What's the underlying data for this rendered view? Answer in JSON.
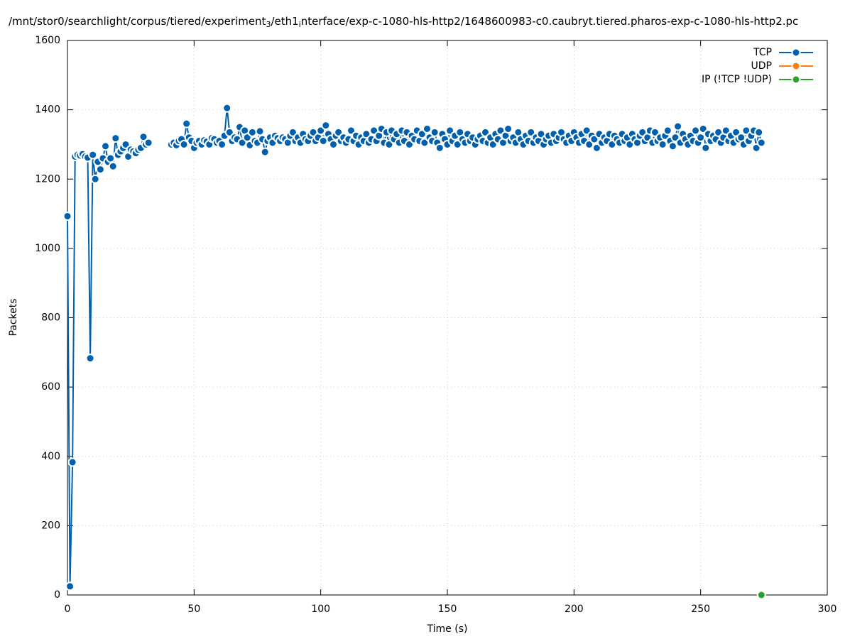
{
  "chart_data": {
    "type": "line",
    "title": [
      "/mnt/stor0/searchlight/corpus/tiered/experiment",
      "3",
      "/eth1",
      "i",
      "nterface/exp-c-1080-hls-http2/1648600983-c0.caubryt.tiered.pharos-exp-c-1080-hls-http2.pc"
    ],
    "xlabel": "Time (s)",
    "ylabel": "Packets",
    "xlim": [
      0,
      300
    ],
    "xticks": [
      0,
      50,
      100,
      150,
      200,
      250,
      300
    ],
    "ylim": [
      0,
      1600
    ],
    "yticks": [
      0,
      200,
      400,
      600,
      800,
      1000,
      1200,
      1400,
      1600
    ],
    "grid": true,
    "legend": "top right",
    "series": [
      {
        "name": "TCP",
        "color": "#0060ad",
        "x": [
          0,
          1,
          2,
          3,
          4,
          5,
          6,
          7,
          8,
          9,
          10,
          11,
          12,
          13,
          14,
          15,
          16,
          17,
          18,
          19,
          20,
          21,
          22,
          23,
          24,
          25,
          26,
          27,
          28,
          29,
          30,
          31,
          32,
          33,
          34,
          35,
          36,
          37,
          38,
          39,
          40,
          41,
          42,
          43,
          44,
          45,
          46,
          47,
          48,
          49,
          50,
          51,
          52,
          53,
          54,
          55,
          56,
          57,
          58,
          59,
          60,
          61,
          62,
          63,
          64,
          65,
          66,
          67,
          68,
          69,
          70,
          71,
          72,
          73,
          74,
          75,
          76,
          77,
          78,
          79,
          80,
          81,
          82,
          83,
          84,
          85,
          86,
          87,
          88,
          89,
          90,
          91,
          92,
          93,
          94,
          95,
          96,
          97,
          98,
          99,
          100,
          101,
          102,
          103,
          104,
          105,
          106,
          107,
          108,
          109,
          110,
          111,
          112,
          113,
          114,
          115,
          116,
          117,
          118,
          119,
          120,
          121,
          122,
          123,
          124,
          125,
          126,
          127,
          128,
          129,
          130,
          131,
          132,
          133,
          134,
          135,
          136,
          137,
          138,
          139,
          140,
          141,
          142,
          143,
          144,
          145,
          146,
          147,
          148,
          149,
          150,
          151,
          152,
          153,
          154,
          155,
          156,
          157,
          158,
          159,
          160,
          161,
          162,
          163,
          164,
          165,
          166,
          167,
          168,
          169,
          170,
          171,
          172,
          173,
          174,
          175,
          176,
          177,
          178,
          179,
          180,
          181,
          182,
          183,
          184,
          185,
          186,
          187,
          188,
          189,
          190,
          191,
          192,
          193,
          194,
          195,
          196,
          197,
          198,
          199,
          200,
          201,
          202,
          203,
          204,
          205,
          206,
          207,
          208,
          209,
          210,
          211,
          212,
          213,
          214,
          215,
          216,
          217,
          218,
          219,
          220,
          221,
          222,
          223,
          224,
          225,
          226,
          227,
          228,
          229,
          230,
          231,
          232,
          233,
          234,
          235,
          236,
          237,
          238,
          239,
          240,
          241,
          242,
          243,
          244,
          245,
          246,
          247,
          248,
          249,
          250,
          251,
          252,
          253,
          254,
          255,
          256,
          257,
          258,
          259,
          260,
          261,
          262,
          263,
          264,
          265,
          266,
          267,
          268,
          269,
          270,
          271,
          272,
          273,
          274
        ],
        "values": [
          1093,
          25,
          383,
          1265,
          1270,
          1268,
          1272,
          1265,
          1262,
          683,
          1270,
          1200,
          1250,
          1228,
          1260,
          1295,
          1250,
          1260,
          1237,
          1318,
          1270,
          1280,
          1290,
          1300,
          1265,
          1285,
          1280,
          1275,
          1285,
          1290,
          1322,
          1300,
          1305,
          null,
          null,
          null,
          null,
          null,
          null,
          null,
          null,
          1300,
          1305,
          1298,
          1310,
          1315,
          1300,
          1360,
          1320,
          1310,
          1290,
          1305,
          1310,
          1300,
          1312,
          1308,
          1300,
          1318,
          1315,
          1305,
          1310,
          1300,
          1325,
          1405,
          1335,
          1310,
          1320,
          1315,
          1350,
          1305,
          1340,
          1320,
          1298,
          1335,
          1310,
          1305,
          1338,
          1315,
          1278,
          1310,
          1320,
          1305,
          1325,
          1318,
          1310,
          1320,
          1315,
          1305,
          1325,
          1335,
          1310,
          1320,
          1305,
          1330,
          1315,
          1310,
          1325,
          1335,
          1310,
          1320,
          1340,
          1310,
          1355,
          1330,
          1315,
          1300,
          1325,
          1335,
          1310,
          1320,
          1305,
          1315,
          1340,
          1310,
          1325,
          1300,
          1320,
          1310,
          1330,
          1305,
          1315,
          1340,
          1310,
          1325,
          1345,
          1305,
          1335,
          1300,
          1340,
          1315,
          1330,
          1305,
          1340,
          1310,
          1335,
          1300,
          1325,
          1315,
          1340,
          1310,
          1330,
          1305,
          1345,
          1320,
          1310,
          1335,
          1305,
          1290,
          1330,
          1315,
          1300,
          1340,
          1310,
          1325,
          1300,
          1335,
          1315,
          1305,
          1330,
          1310,
          1320,
          1300,
          1315,
          1325,
          1310,
          1335,
          1305,
          1320,
          1300,
          1330,
          1315,
          1340,
          1305,
          1325,
          1345,
          1310,
          1320,
          1305,
          1335,
          1315,
          1300,
          1325,
          1310,
          1335,
          1305,
          1320,
          1310,
          1330,
          1300,
          1315,
          1325,
          1305,
          1330,
          1310,
          1320,
          1335,
          1315,
          1305,
          1325,
          1310,
          1335,
          1320,
          1305,
          1330,
          1310,
          1340,
          1300,
          1325,
          1315,
          1290,
          1330,
          1305,
          1320,
          1310,
          1330,
          1300,
          1325,
          1315,
          1305,
          1330,
          1310,
          1320,
          1300,
          1330,
          1315,
          1305,
          1325,
          1335,
          1310,
          1320,
          1340,
          1305,
          1335,
          1310,
          1320,
          1300,
          1325,
          1340,
          1310,
          1295,
          1320,
          1352,
          1305,
          1330,
          1315,
          1300,
          1325,
          1310,
          1340,
          1305,
          1320,
          1345,
          1290,
          1330,
          1310,
          1325,
          1315,
          1335,
          1305,
          1320,
          1340,
          1310,
          1325,
          1305,
          1335,
          1315,
          1320,
          1300,
          1340,
          1310,
          1325,
          1340,
          1290,
          1335,
          1305
        ]
      },
      {
        "name": "UDP",
        "color": "#ff7f0e",
        "x": [],
        "values": []
      },
      {
        "name": "IP (!TCP  !UDP)",
        "color": "#2ca02c",
        "x": [
          274
        ],
        "values": [
          0
        ]
      }
    ]
  }
}
